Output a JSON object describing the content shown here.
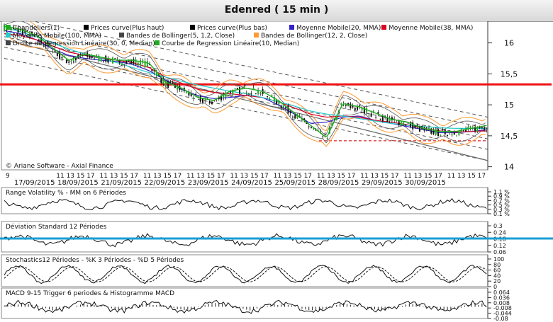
{
  "window": {
    "title": "Edenred  ( 15 min )"
  },
  "main_chart": {
    "legend": [
      {
        "label": "Chandeliers(1)",
        "color": "#22aa22"
      },
      {
        "label": "Prices curve(Plus haut)",
        "color": "#000000"
      },
      {
        "label": "Prices curve(Plus bas)",
        "color": "#000000"
      },
      {
        "label": "Moyenne Mobile(20, MMA)",
        "color": "#3322cc"
      },
      {
        "label": "Moyenne Mobile(38, MMA)",
        "color": "#dd0022"
      },
      {
        "label": "Moyenne Mobile(100, MMA)",
        "color": "#22cccc"
      },
      {
        "label": "Bandes de Bollinger(5, 1,2, Close)",
        "color": "#444444"
      },
      {
        "label": "Bandes de Bollinger(12, 2, Close)",
        "color": "#ff9933"
      },
      {
        "label": "Droite de Regression Linéaire(30, 0, Median)",
        "color": "#444444"
      },
      {
        "label": "Courbe de Regression Linéaire(10, Median)",
        "color": "#22aa22"
      }
    ],
    "copyright": "© Ariane Software - Axial Finance",
    "y_ticks": [
      "16",
      "15,5",
      "15",
      "14,5",
      "14"
    ],
    "horizontal_line_value": 15.33,
    "horizontal_line_color": "#ee1111",
    "dashed_level_value": 14.42,
    "hour_label_rows": [
      "9",
      "11 13 15 17",
      "11 13 15 17",
      "11 13 15 17",
      "11 13 15 17",
      "11 13 15 17",
      "11 13 15 17",
      "11 13 15 17",
      "11 13 15 17",
      "11 13 15 17",
      "11 13 15 17"
    ],
    "dates": [
      "17/09/2015",
      "18/09/2015",
      "21/09/2015",
      "22/09/2015",
      "23/09/2015",
      "24/09/2015",
      "25/09/2015",
      "28/09/2015",
      "29/09/2015",
      "30/09/2015"
    ]
  },
  "panels": {
    "volatility": {
      "title": "Range Volatility % - MM on 6 Périodes",
      "ticks": [
        "1.1 %",
        "0.9 %",
        "0.7 %",
        "0.5 %",
        "0.3 %",
        "0.1 %"
      ]
    },
    "deviation": {
      "title": "Déviation Standard 12 Périodes",
      "ticks": [
        "0.3",
        "0.24",
        "0.18",
        "0.12",
        "0.06"
      ],
      "line_color": "#1a9fd4"
    },
    "stochastic": {
      "title": "Stochastics12 Périodes  -  %K 3 Périodes  -  %D 5 Périodes",
      "ticks": [
        "100",
        "80",
        "60",
        "40",
        "20",
        "0"
      ]
    },
    "macd": {
      "title": "MACD 9-15   Trigger 6 periodes & Histogramme MACD",
      "ticks": [
        "0.064",
        "0.036",
        "0.008",
        "-0.008",
        "-0.044",
        "-0.08"
      ]
    }
  },
  "chart_data": {
    "type": "line",
    "title": "Edenred  ( 15 min )",
    "ylim": [
      13.95,
      16.35
    ],
    "series": [
      {
        "name": "Chandeliers(1)",
        "values": [
          16.25,
          16.2,
          16.1,
          15.9,
          15.7,
          15.8,
          15.75,
          15.7,
          15.7,
          15.65,
          15.35,
          15.25,
          15.1,
          15.05,
          15.2,
          15.25,
          15.2,
          15.05,
          14.85,
          14.65,
          14.45,
          15.0,
          14.95,
          14.85,
          14.75,
          14.7,
          14.6,
          14.55,
          14.55,
          14.6,
          14.65
        ]
      },
      {
        "name": "Moyenne Mobile(20, MMA)",
        "values": [
          16.2,
          16.15,
          16.05,
          15.9,
          15.8,
          15.75,
          15.72,
          15.7,
          15.65,
          15.55,
          15.4,
          15.25,
          15.15,
          15.1,
          15.12,
          15.15,
          15.12,
          15.0,
          14.85,
          14.7,
          14.72,
          14.8,
          14.82,
          14.75,
          14.7,
          14.65,
          14.6,
          14.55,
          14.55,
          14.57,
          14.6
        ]
      },
      {
        "name": "Moyenne Mobile(38, MMA)",
        "values": [
          16.15,
          16.12,
          16.05,
          15.95,
          15.85,
          15.8,
          15.75,
          15.72,
          15.68,
          15.6,
          15.45,
          15.35,
          15.25,
          15.2,
          15.18,
          15.15,
          15.12,
          15.05,
          14.95,
          14.85,
          14.8,
          14.82,
          14.8,
          14.75,
          14.72,
          14.68,
          14.62,
          14.58,
          14.56,
          14.57,
          14.58
        ]
      },
      {
        "name": "Moyenne Mobile(100, MMA)",
        "values": [
          16.25,
          16.18,
          16.1,
          16.0,
          15.9,
          15.82,
          15.75,
          15.68,
          15.6,
          15.52,
          15.45,
          15.38,
          15.32,
          15.27,
          15.22,
          15.18,
          15.12,
          15.05,
          14.98,
          14.9,
          14.85,
          14.82,
          14.78,
          14.74,
          14.7,
          14.67,
          14.65,
          14.63,
          14.62,
          14.62,
          14.62
        ]
      }
    ],
    "xlabel": "",
    "ylabel": "",
    "grid": true
  }
}
